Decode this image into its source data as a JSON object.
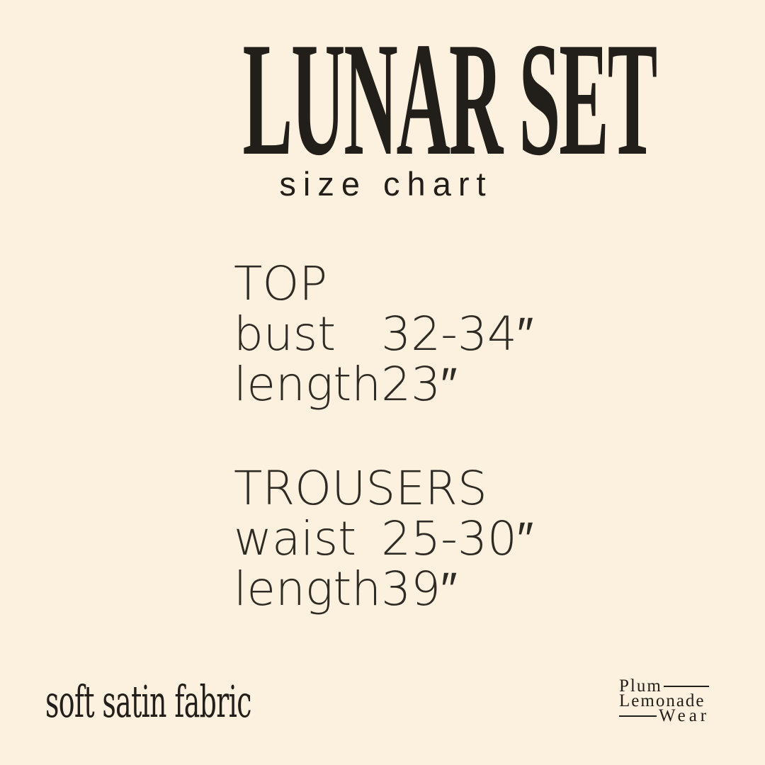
{
  "canvas": {
    "background_color": "#fcf1df",
    "ink_color": "#221e19",
    "thin_text_color": "#2e2a24"
  },
  "header": {
    "title": "LUNAR SET",
    "subtitle": "size chart"
  },
  "size_chart": {
    "sections": [
      {
        "name": "TOP",
        "rows": [
          {
            "label": "bust",
            "value": "32-34″"
          },
          {
            "label": "length",
            "value": "23″"
          }
        ]
      },
      {
        "name": "TROUSERS",
        "rows": [
          {
            "label": "waist",
            "value": "25-30″"
          },
          {
            "label": "length",
            "value": "39″"
          }
        ]
      }
    ]
  },
  "footer": {
    "fabric_note": "soft satin fabric",
    "brand_logo": {
      "word1": "Plum",
      "word2": "Lemonade",
      "word3": "Wear"
    }
  }
}
